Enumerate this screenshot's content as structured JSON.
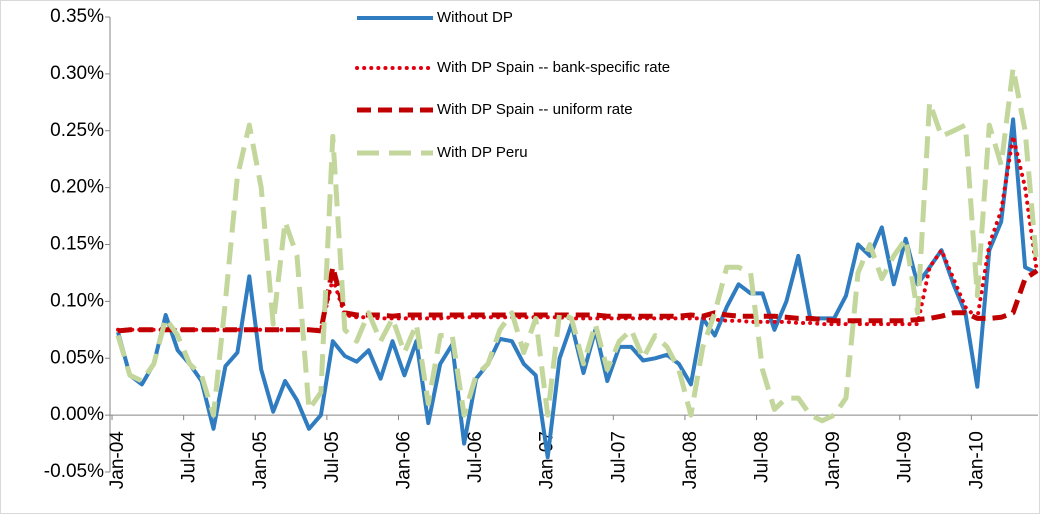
{
  "chart_data": {
    "type": "line",
    "categories": [
      "Jan-04",
      null,
      null,
      null,
      null,
      null,
      "Jul-04",
      null,
      null,
      null,
      null,
      null,
      "Jan-05",
      null,
      null,
      null,
      null,
      null,
      "Jul-05",
      null,
      null,
      null,
      null,
      null,
      "Jan-06",
      null,
      null,
      null,
      null,
      null,
      "Jul-06",
      null,
      null,
      null,
      null,
      null,
      "Jan-07",
      null,
      null,
      null,
      null,
      null,
      "Jul-07",
      null,
      null,
      null,
      null,
      null,
      "Jan-08",
      null,
      null,
      null,
      null,
      null,
      "Jul-08",
      null,
      null,
      null,
      null,
      null,
      "Jan-09",
      null,
      null,
      null,
      null,
      null,
      "Jul-09",
      null,
      null,
      null,
      null,
      null,
      "Jan-10",
      null,
      null,
      null,
      null,
      null
    ],
    "ylim": [
      -0.05,
      0.35
    ],
    "yticks": [
      {
        "value": -0.05,
        "label": "-0.05%"
      },
      {
        "value": 0,
        "label": "0.00%"
      },
      {
        "value": 0.05,
        "label": "0.05%"
      },
      {
        "value": 0.1,
        "label": "0.10%"
      },
      {
        "value": 0.15,
        "label": "0.15%"
      },
      {
        "value": 0.2,
        "label": "0.20%"
      },
      {
        "value": 0.25,
        "label": "0.25%"
      },
      {
        "value": 0.3,
        "label": "0.30%"
      },
      {
        "value": 0.35,
        "label": "0.35%"
      }
    ],
    "series": [
      {
        "name": "Without DP",
        "color": "#2f7cc0",
        "style": "solid",
        "values": [
          0.073,
          0.035,
          0.027,
          0.045,
          0.088,
          0.057,
          0.045,
          0.03,
          -0.012,
          0.043,
          0.055,
          0.122,
          0.04,
          0.003,
          0.03,
          0.013,
          -0.012,
          0.0,
          0.065,
          0.052,
          0.047,
          0.057,
          0.032,
          0.065,
          0.035,
          0.065,
          -0.007,
          0.045,
          0.062,
          -0.025,
          0.032,
          0.045,
          0.067,
          0.065,
          0.045,
          0.035,
          -0.037,
          0.05,
          0.08,
          0.037,
          0.075,
          0.03,
          0.06,
          0.06,
          0.048,
          0.05,
          0.053,
          0.045,
          0.027,
          0.085,
          0.07,
          0.095,
          0.115,
          0.107,
          0.107,
          0.075,
          0.1,
          0.14,
          0.085,
          0.085,
          0.085,
          0.105,
          0.15,
          0.14,
          0.165,
          0.115,
          0.155,
          0.115,
          0.13,
          0.145,
          0.115,
          0.09,
          0.025,
          0.145,
          0.17,
          0.26,
          0.13,
          0.125
        ]
      },
      {
        "name": "With DP Spain -- bank-specific rate",
        "color": "#e3000f",
        "style": "dotted",
        "values": [
          0.075,
          0.075,
          0.075,
          0.075,
          0.075,
          0.075,
          0.075,
          0.075,
          0.075,
          0.075,
          0.075,
          0.075,
          0.075,
          0.075,
          0.075,
          0.075,
          0.075,
          0.075,
          0.12,
          0.088,
          0.086,
          0.086,
          0.085,
          0.085,
          0.085,
          0.085,
          0.085,
          0.085,
          0.086,
          0.086,
          0.086,
          0.086,
          0.086,
          0.086,
          0.086,
          0.086,
          0.086,
          0.086,
          0.085,
          0.085,
          0.085,
          0.085,
          0.085,
          0.085,
          0.085,
          0.085,
          0.085,
          0.085,
          0.085,
          0.085,
          0.084,
          0.083,
          0.083,
          0.082,
          0.082,
          0.082,
          0.082,
          0.081,
          0.081,
          0.08,
          0.08,
          0.08,
          0.08,
          0.08,
          0.08,
          0.08,
          0.08,
          0.08,
          0.13,
          0.145,
          0.12,
          0.095,
          0.085,
          0.15,
          0.18,
          0.245,
          0.2,
          0.125
        ]
      },
      {
        "name": "With DP Spain -- uniform rate",
        "color": "#c00000",
        "style": "dashed",
        "values": [
          0.074,
          0.075,
          0.075,
          0.075,
          0.075,
          0.075,
          0.075,
          0.075,
          0.075,
          0.075,
          0.075,
          0.075,
          0.075,
          0.075,
          0.075,
          0.075,
          0.075,
          0.074,
          0.13,
          0.09,
          0.088,
          0.088,
          0.088,
          0.087,
          0.088,
          0.088,
          0.088,
          0.088,
          0.088,
          0.088,
          0.088,
          0.088,
          0.088,
          0.088,
          0.088,
          0.088,
          0.088,
          0.088,
          0.088,
          0.088,
          0.088,
          0.087,
          0.087,
          0.087,
          0.087,
          0.087,
          0.087,
          0.087,
          0.088,
          0.087,
          0.09,
          0.088,
          0.087,
          0.087,
          0.087,
          0.087,
          0.086,
          0.085,
          0.085,
          0.084,
          0.083,
          0.083,
          0.083,
          0.083,
          0.083,
          0.083,
          0.083,
          0.084,
          0.085,
          0.087,
          0.09,
          0.09,
          0.085,
          0.085,
          0.086,
          0.09,
          0.12,
          0.127
        ]
      },
      {
        "name": "With DP Peru",
        "color": "#c3d69b",
        "style": "longdash",
        "values": [
          0.07,
          0.035,
          0.03,
          0.045,
          0.085,
          0.07,
          0.045,
          0.035,
          0.0,
          0.1,
          0.21,
          0.255,
          0.2,
          0.08,
          0.17,
          0.14,
          0.005,
          0.02,
          0.245,
          0.075,
          0.065,
          0.09,
          0.065,
          0.085,
          0.055,
          0.08,
          0.01,
          0.07,
          0.07,
          0.0,
          0.035,
          0.045,
          0.075,
          0.09,
          0.055,
          0.085,
          0.0,
          0.09,
          0.085,
          0.045,
          0.08,
          0.04,
          0.065,
          0.075,
          0.05,
          0.07,
          0.06,
          0.04,
          0.0,
          0.06,
          0.09,
          0.13,
          0.13,
          0.125,
          0.04,
          0.005,
          0.015,
          0.015,
          0.0,
          -0.005,
          0.0,
          0.015,
          0.125,
          0.15,
          0.12,
          0.14,
          0.155,
          0.09,
          0.275,
          0.245,
          0.25,
          0.255,
          0.105,
          0.255,
          0.22,
          0.305,
          0.25,
          0.13
        ]
      }
    ]
  }
}
